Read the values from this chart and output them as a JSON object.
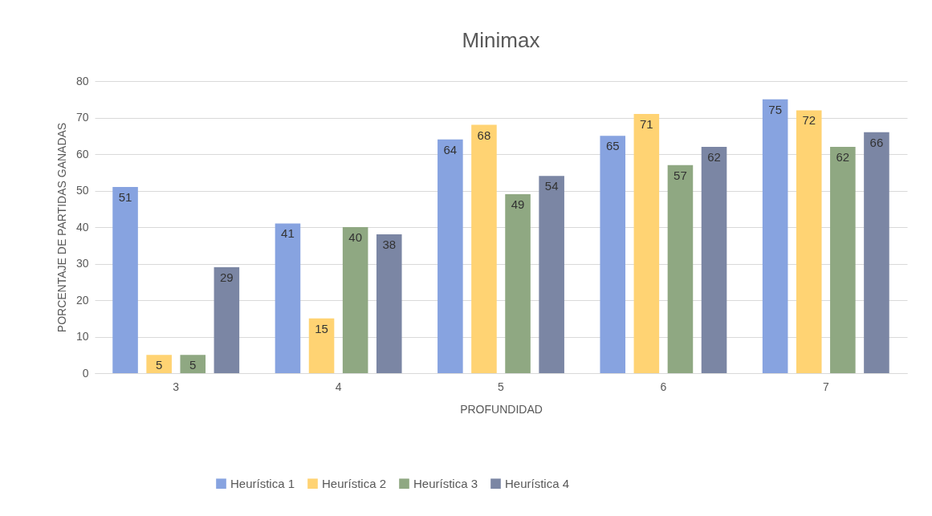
{
  "chart_data": {
    "type": "bar",
    "title": "Minimax",
    "xlabel": "PROFUNDIDAD",
    "ylabel": "PORCENTAJE DE PARTIDAS GANADAS",
    "categories": [
      "3",
      "4",
      "5",
      "6",
      "7"
    ],
    "series": [
      {
        "name": "Heurística 1",
        "color": "#87a3e0",
        "values": [
          51,
          41,
          64,
          65,
          75
        ]
      },
      {
        "name": "Heurística 2",
        "color": "#ffd373",
        "values": [
          5,
          15,
          68,
          71,
          72
        ]
      },
      {
        "name": "Heurística 3",
        "color": "#8fa882",
        "values": [
          5,
          40,
          49,
          57,
          62
        ]
      },
      {
        "name": "Heurística 4",
        "color": "#7b86a4",
        "values": [
          29,
          38,
          54,
          62,
          66
        ]
      }
    ],
    "ylim": [
      0,
      80
    ],
    "yticks": [
      0,
      10,
      20,
      30,
      40,
      50,
      60,
      70,
      80
    ],
    "grid": "y",
    "legend": "bottom",
    "data_labels": true
  }
}
